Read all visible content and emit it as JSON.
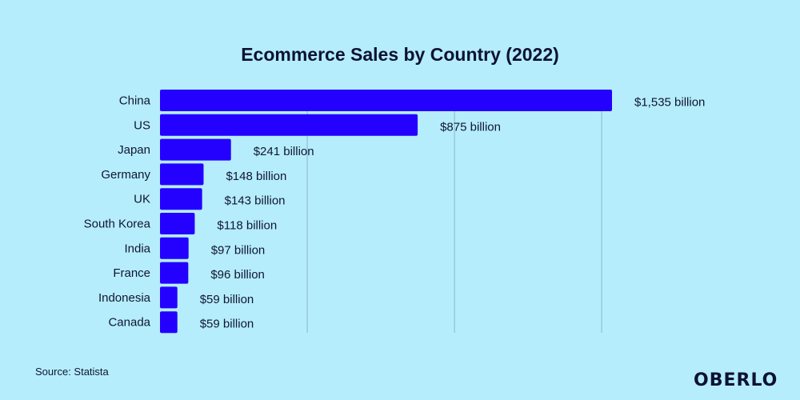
{
  "chart_data": {
    "type": "bar",
    "orientation": "horizontal",
    "title": "Ecommerce Sales by Country (2022)",
    "categories": [
      "China",
      "US",
      "Japan",
      "Germany",
      "UK",
      "South Korea",
      "India",
      "France",
      "Indonesia",
      "Canada"
    ],
    "values": [
      1535,
      875,
      241,
      148,
      143,
      118,
      97,
      96,
      59,
      59
    ],
    "data_labels": [
      "$1,535 billion",
      "$875 billion",
      "$241 billion",
      "$148 billion",
      "$143 billion",
      "$118 billion",
      "$97 billion",
      "$96 billion",
      "$59 billion",
      "$59 billion"
    ],
    "xlim": [
      0,
      1535
    ],
    "gridlines": [
      500,
      1000,
      1500
    ],
    "grid": true,
    "colors": {
      "bar": "#2400ff",
      "background": "#b5edfd",
      "grid": "#8fb8c8",
      "text": "#101530"
    }
  },
  "source": "Source: Statista",
  "logo": "OBERLO"
}
